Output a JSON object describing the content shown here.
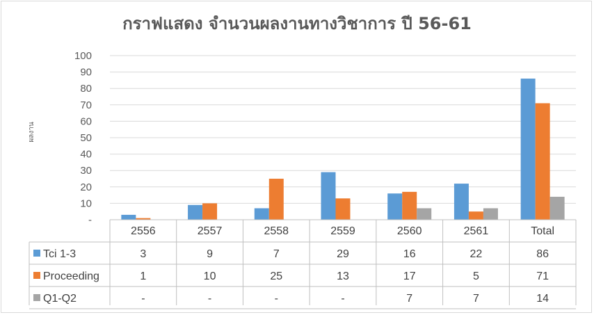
{
  "chart_data": {
    "type": "bar",
    "title": "กราฟแสดง จำนวนผลงานทางวิชาการ ปี 56-61",
    "ylabel": "ผลงาน",
    "xlabel": "",
    "ylim": [
      0,
      100
    ],
    "yticks": [
      "-",
      "10",
      "20",
      "30",
      "40",
      "50",
      "60",
      "70",
      "80",
      "90",
      "100"
    ],
    "categories": [
      "2556",
      "2557",
      "2558",
      "2559",
      "2560",
      "2561",
      "Total"
    ],
    "series": [
      {
        "name": "Tci 1-3",
        "color": "#5b9bd5",
        "values": [
          3,
          9,
          7,
          29,
          16,
          22,
          86
        ],
        "labels": [
          "3",
          "9",
          "7",
          "29",
          "16",
          "22",
          "86"
        ]
      },
      {
        "name": "Proceeding",
        "color": "#ed7d31",
        "values": [
          1,
          10,
          25,
          13,
          17,
          5,
          71
        ],
        "labels": [
          "1",
          "10",
          "25",
          "13",
          "17",
          "5",
          "71"
        ]
      },
      {
        "name": "Q1-Q2",
        "color": "#a5a5a5",
        "values": [
          0,
          0,
          0,
          0,
          7,
          7,
          14
        ],
        "labels": [
          "-",
          "-",
          "-",
          "-",
          "7",
          "7",
          "14"
        ]
      }
    ],
    "grid": true,
    "legend": "data-table"
  }
}
